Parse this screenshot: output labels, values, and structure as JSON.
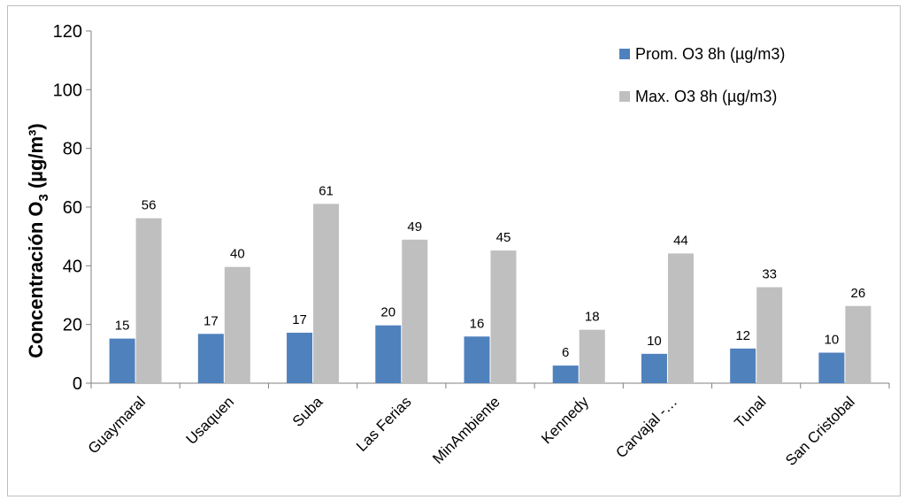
{
  "chart_data": {
    "type": "bar",
    "title": "",
    "xlabel": "",
    "ylabel_main": "Concentración O",
    "ylabel_sub": "3",
    "ylabel_units": " (µg/m³)",
    "ylim": [
      0,
      120
    ],
    "yticks": [
      0,
      20,
      40,
      60,
      80,
      100,
      120
    ],
    "grid": false,
    "legend_position": "top-right",
    "categories": [
      "Guaymaral",
      "Usaquen",
      "Suba",
      "Las Ferias",
      "MinAmbiente",
      "Kennedy",
      "Carvajal -…",
      "Tunal",
      "San Cristobal"
    ],
    "series": [
      {
        "name": "Prom. O3 8h (µg/m3)",
        "color": "#4f81bd",
        "values": [
          15.2,
          16.8,
          17.2,
          19.7,
          15.9,
          6.0,
          10.0,
          11.8,
          10.4
        ],
        "labels": [
          "15",
          "17",
          "17",
          "20",
          "16",
          "6",
          "10",
          "12",
          "10"
        ]
      },
      {
        "name": "Max. O3 8h (µg/m3)",
        "color": "#bfbfbf",
        "values": [
          56.2,
          39.6,
          61.1,
          48.9,
          45.2,
          18.2,
          44.2,
          32.7,
          26.3
        ],
        "labels": [
          "56",
          "40",
          "61",
          "49",
          "45",
          "18",
          "44",
          "33",
          "26"
        ]
      }
    ]
  }
}
